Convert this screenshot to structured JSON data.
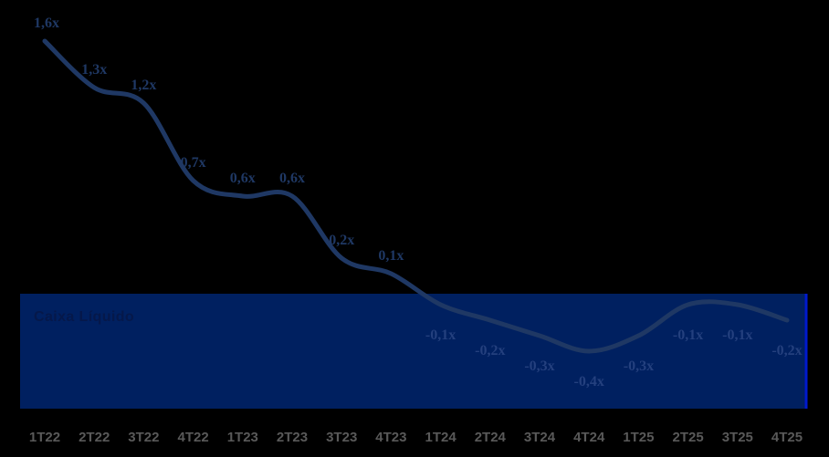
{
  "chart_data": {
    "type": "line",
    "title": "",
    "categories": [
      "1T22",
      "2T22",
      "3T22",
      "4T22",
      "1T23",
      "2T23",
      "3T23",
      "4T23",
      "1T24",
      "2T24",
      "3T24",
      "4T24",
      "1T25",
      "2T25",
      "3T25",
      "4T25"
    ],
    "values": [
      1.6,
      1.3,
      1.2,
      0.7,
      0.6,
      0.6,
      0.2,
      0.1,
      -0.1,
      -0.2,
      -0.3,
      -0.4,
      -0.3,
      -0.1,
      -0.1,
      -0.2
    ],
    "point_labels": [
      "1,6x",
      "1,3x",
      "1,2x",
      "0,7x",
      "0,6x",
      "0,6x",
      "0,2x",
      "0,1x",
      "-0,1x",
      "-0,2x",
      "-0,3x",
      "-0,4x",
      "-0,3x",
      "-0,1x",
      "-0,1x",
      "-0,2x"
    ],
    "unit_suffix": "x",
    "decimal_separator": ",",
    "ylim": [
      -0.55,
      1.75
    ],
    "grid": false,
    "legend": "none",
    "smooth_line": true,
    "band": {
      "label": "Caixa Líquido",
      "region": "values below zero"
    },
    "colors": {
      "background": "#000000",
      "line": "#1F3864",
      "label_positive": "#1F3864",
      "label_negative": "#24407E",
      "band_fill": "#002060",
      "band_label": "#05184A",
      "band_right_edge": "#0019CD",
      "axis_label": "#595959"
    }
  }
}
